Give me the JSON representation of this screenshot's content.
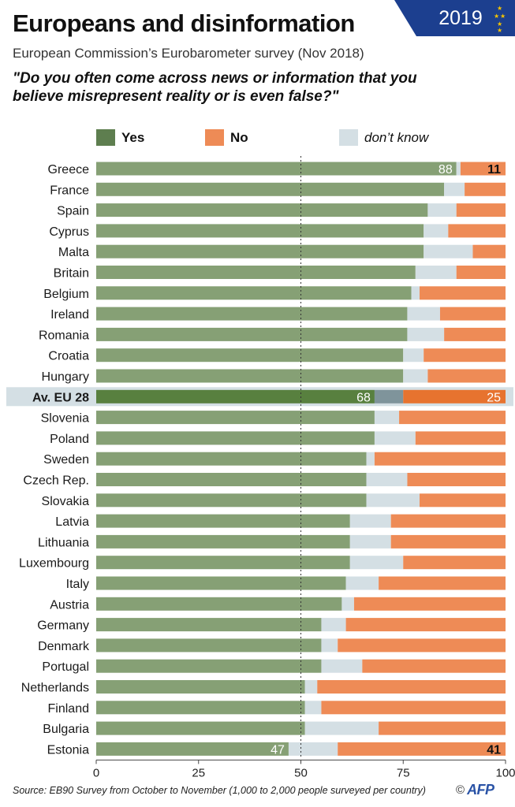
{
  "header": {
    "title": "Europeans and disinformation",
    "subtitle": "European Commission’s Eurobarometer survey (Nov 2018)",
    "question": "\"Do you often come across news or information that you believe misrepresent reality or is even false?\"",
    "badge_year": "2019",
    "badge_color": "#1c3f8f",
    "star_color": "#f5c400"
  },
  "legend": {
    "yes": "Yes",
    "no": "No",
    "dont_know": "don’t know"
  },
  "colors": {
    "yes": "#86a075",
    "no": "#ee8b56",
    "dont_know": "#d4dfe4",
    "yes_highlight": "#58803f",
    "no_highlight": "#e7732f",
    "dont_know_highlight": "#7f949b",
    "highlight_band": "#d4dfe4"
  },
  "chart_data": {
    "type": "bar",
    "orientation": "horizontal",
    "stacked": true,
    "categories": [
      "Greece",
      "France",
      "Spain",
      "Cyprus",
      "Malta",
      "Britain",
      "Belgium",
      "Ireland",
      "Romania",
      "Croatia",
      "Hungary",
      "Av. EU 28",
      "Slovenia",
      "Poland",
      "Sweden",
      "Czech Rep.",
      "Slovakia",
      "Latvia",
      "Lithuania",
      "Luxembourg",
      "Italy",
      "Austria",
      "Germany",
      "Denmark",
      "Portugal",
      "Netherlands",
      "Finland",
      "Bulgaria",
      "Estonia"
    ],
    "series": [
      {
        "name": "Yes",
        "values": [
          88,
          85,
          81,
          80,
          80,
          78,
          77,
          76,
          76,
          75,
          75,
          68,
          68,
          68,
          66,
          66,
          66,
          62,
          62,
          62,
          61,
          60,
          55,
          55,
          55,
          51,
          51,
          51,
          47
        ]
      },
      {
        "name": "don’t know",
        "values": [
          1,
          5,
          7,
          6,
          12,
          10,
          2,
          8,
          9,
          5,
          6,
          7,
          6,
          10,
          2,
          10,
          13,
          10,
          10,
          13,
          8,
          3,
          6,
          4,
          10,
          3,
          4,
          18,
          12
        ]
      },
      {
        "name": "No",
        "values": [
          11,
          10,
          12,
          14,
          8,
          12,
          21,
          16,
          15,
          20,
          19,
          25,
          26,
          22,
          32,
          24,
          21,
          28,
          28,
          25,
          31,
          37,
          39,
          41,
          35,
          46,
          45,
          31,
          41
        ]
      }
    ],
    "highlight_category": "Av. EU 28",
    "data_labels": [
      {
        "category": "Greece",
        "series": "Yes",
        "text": "88"
      },
      {
        "category": "Greece",
        "series": "No",
        "text": "11"
      },
      {
        "category": "Av. EU 28",
        "series": "Yes",
        "text": "68"
      },
      {
        "category": "Av. EU 28",
        "series": "No",
        "text": "25"
      },
      {
        "category": "Estonia",
        "series": "Yes",
        "text": "47"
      },
      {
        "category": "Estonia",
        "series": "No",
        "text": "41"
      }
    ],
    "xlim": [
      0,
      100
    ],
    "xticks": [
      0,
      25,
      50,
      75,
      100
    ],
    "reference_line": 50,
    "grid": false,
    "legend_position": "top"
  },
  "footer": {
    "source": "Source: EB90 Survey from October to November (1,000 to 2,000 people surveyed per country)",
    "copyright": "©",
    "logo": "AFP"
  }
}
